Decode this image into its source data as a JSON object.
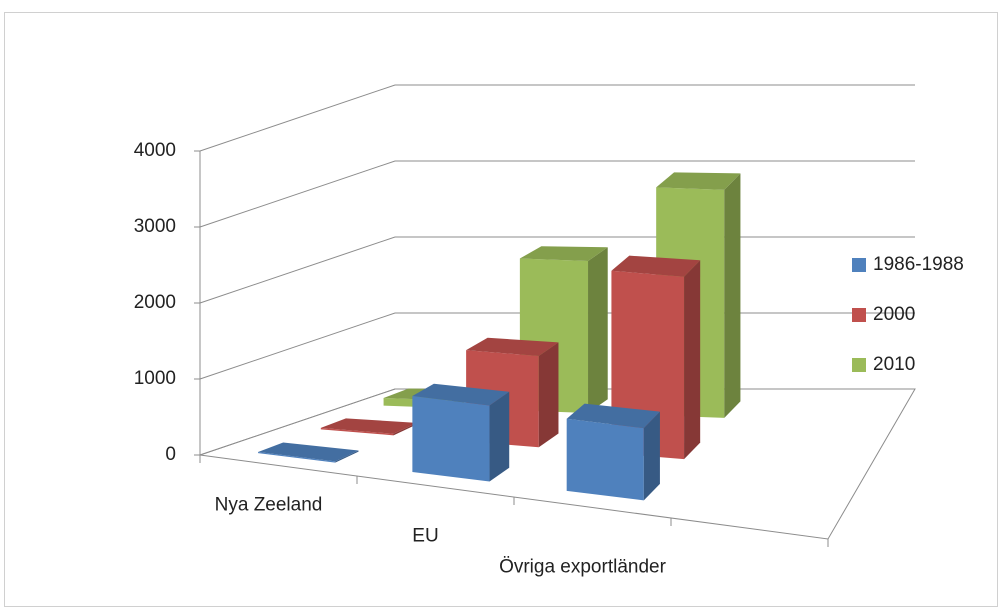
{
  "chart_data": {
    "type": "bar3d",
    "categories": [
      "Nya Zeeland",
      "EU",
      "Övriga exportländer"
    ],
    "series": [
      {
        "name": "1986-1988",
        "color": "#4f81bd",
        "values": [
          15,
          1000,
          950
        ]
      },
      {
        "name": "2000",
        "color": "#c0504d",
        "values": [
          20,
          1200,
          2400
        ]
      },
      {
        "name": "2010",
        "color": "#9bbb59",
        "values": [
          100,
          2000,
          3000
        ]
      }
    ],
    "ylim": [
      0,
      4000
    ],
    "yticks": [
      0,
      1000,
      2000,
      3000,
      4000
    ],
    "grid": true,
    "legend": "right"
  }
}
